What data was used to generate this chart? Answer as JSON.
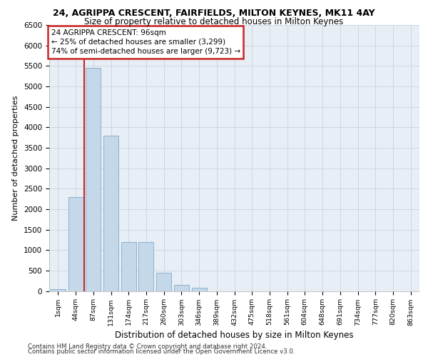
{
  "title1": "24, AGRIPPA CRESCENT, FAIRFIELDS, MILTON KEYNES, MK11 4AY",
  "title2": "Size of property relative to detached houses in Milton Keynes",
  "xlabel": "Distribution of detached houses by size in Milton Keynes",
  "ylabel": "Number of detached properties",
  "footer1": "Contains HM Land Registry data © Crown copyright and database right 2024.",
  "footer2": "Contains public sector information licensed under the Open Government Licence v3.0.",
  "bar_labels": [
    "1sqm",
    "44sqm",
    "87sqm",
    "131sqm",
    "174sqm",
    "217sqm",
    "260sqm",
    "303sqm",
    "346sqm",
    "389sqm",
    "432sqm",
    "475sqm",
    "518sqm",
    "561sqm",
    "604sqm",
    "648sqm",
    "691sqm",
    "734sqm",
    "777sqm",
    "820sqm",
    "863sqm"
  ],
  "bar_values": [
    50,
    2300,
    5450,
    3800,
    1200,
    1200,
    450,
    150,
    75,
    0,
    0,
    0,
    0,
    0,
    0,
    0,
    0,
    0,
    0,
    0,
    0
  ],
  "bar_color": "#c5d8ea",
  "bar_edge_color": "#7baac8",
  "vline_x_index": 2,
  "vline_side": "left",
  "vline_color": "#cc2222",
  "ylim_max": 6500,
  "ytick_step": 500,
  "annotation_line1": "24 AGRIPPA CRESCENT: 96sqm",
  "annotation_line2": "← 25% of detached houses are smaller (3,299)",
  "annotation_line3": "74% of semi-detached houses are larger (9,723) →",
  "annotation_box_facecolor": "#ffffff",
  "annotation_box_edgecolor": "#cc2222",
  "bg_color": "#e8eef5",
  "grid_color": "#c8d4e0",
  "fig_bg": "#ffffff"
}
